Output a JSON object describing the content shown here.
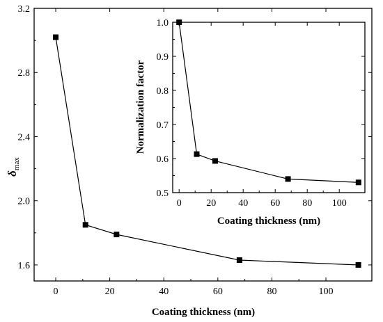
{
  "chart_data": [
    {
      "type": "line",
      "xlabel": "Coating thickness (nm)",
      "ylabel_main": "δ",
      "ylabel_sub": "max",
      "xlim": [
        -8,
        117
      ],
      "ylim": [
        1.5,
        3.2
      ],
      "xticks": [
        0,
        20,
        40,
        60,
        80,
        100
      ],
      "yticks": [
        1.6,
        2.0,
        2.4,
        2.8,
        3.2
      ],
      "ytick_labels": [
        "1.6",
        "2.0",
        "2.4",
        "2.8",
        "3.2"
      ],
      "grid": false,
      "series": [
        {
          "x": [
            0,
            11,
            22.5,
            68,
            112
          ],
          "y": [
            3.02,
            1.85,
            1.79,
            1.63,
            1.6
          ],
          "marker": "square",
          "color": "#000000"
        }
      ]
    },
    {
      "type": "line",
      "xlabel": "Coating thickness (nm)",
      "ylabel": "Normalization factor",
      "xlim": [
        -4,
        116
      ],
      "ylim": [
        0.5,
        1.0
      ],
      "xticks": [
        0,
        20,
        40,
        60,
        80,
        100
      ],
      "yticks": [
        0.5,
        0.6,
        0.7,
        0.8,
        0.9,
        1.0
      ],
      "ytick_labels": [
        "0.5",
        "0.6",
        "0.7",
        "0.8",
        "0.9",
        "1.0"
      ],
      "grid": false,
      "series": [
        {
          "x": [
            0,
            11,
            22.5,
            68,
            112
          ],
          "y": [
            1.0,
            0.613,
            0.593,
            0.54,
            0.53
          ],
          "marker": "square",
          "color": "#000000"
        }
      ]
    }
  ]
}
